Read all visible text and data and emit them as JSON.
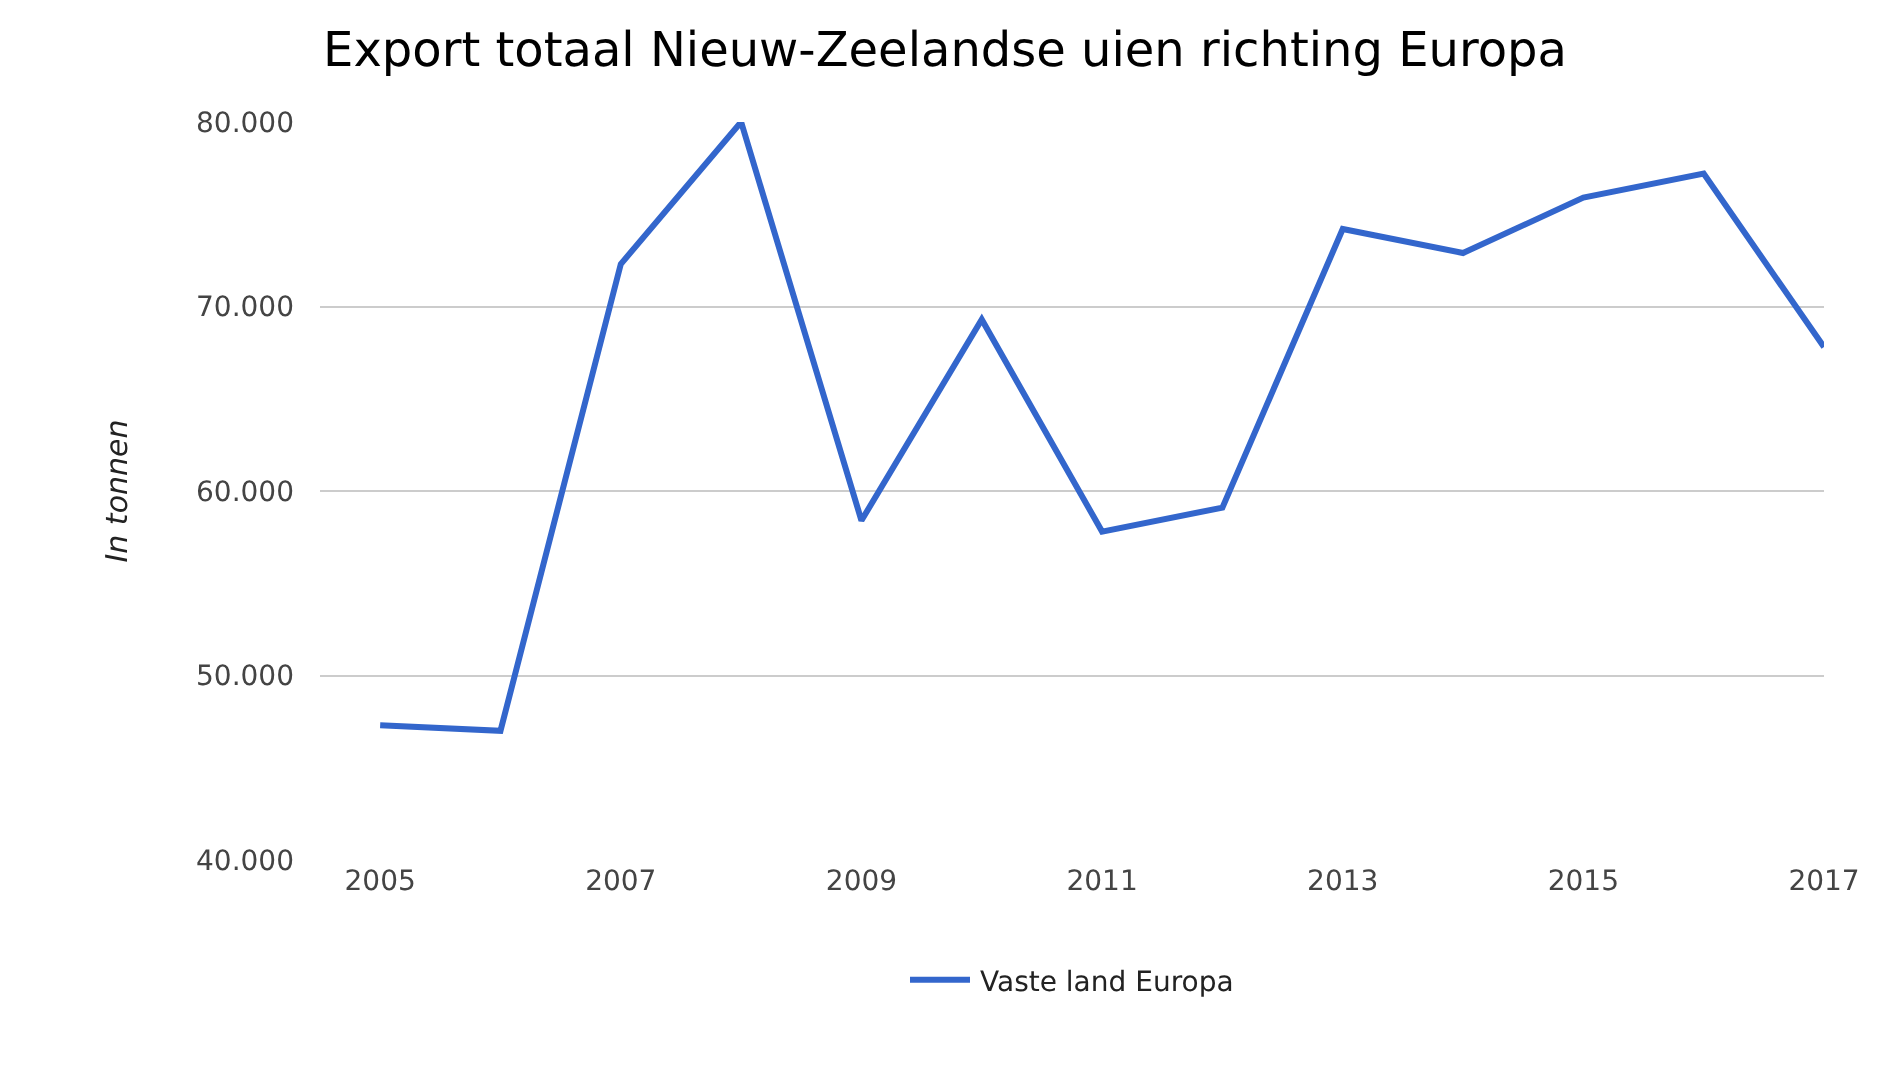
{
  "chart_data": {
    "type": "line",
    "title": "Export totaal Nieuw-Zeelandse uien richting Europa",
    "ylabel": "In tonnen",
    "x": [
      2005,
      2006,
      2007,
      2008,
      2009,
      2010,
      2011,
      2012,
      2013,
      2014,
      2015,
      2016,
      2017
    ],
    "series": [
      {
        "name": "Vaste land Europa",
        "color": "#3366cc",
        "values": [
          47300,
          47000,
          72300,
          80000,
          58400,
          69300,
          57800,
          59100,
          74200,
          72900,
          75900,
          77200,
          67800
        ]
      }
    ],
    "xlim": [
      2004.5,
      2017
    ],
    "xticks": [
      2005,
      2007,
      2009,
      2011,
      2013,
      2015,
      2017
    ],
    "ylim": [
      40000,
      80000
    ],
    "yticks": [
      {
        "value": 40000,
        "label": "40.000"
      },
      {
        "value": 50000,
        "label": "50.000"
      },
      {
        "value": 60000,
        "label": "60.000"
      },
      {
        "value": 70000,
        "label": "70.000"
      },
      {
        "value": 80000,
        "label": "80.000"
      }
    ],
    "grid": "y",
    "legend": "bottom",
    "marker": "none",
    "line_style": "solid"
  }
}
